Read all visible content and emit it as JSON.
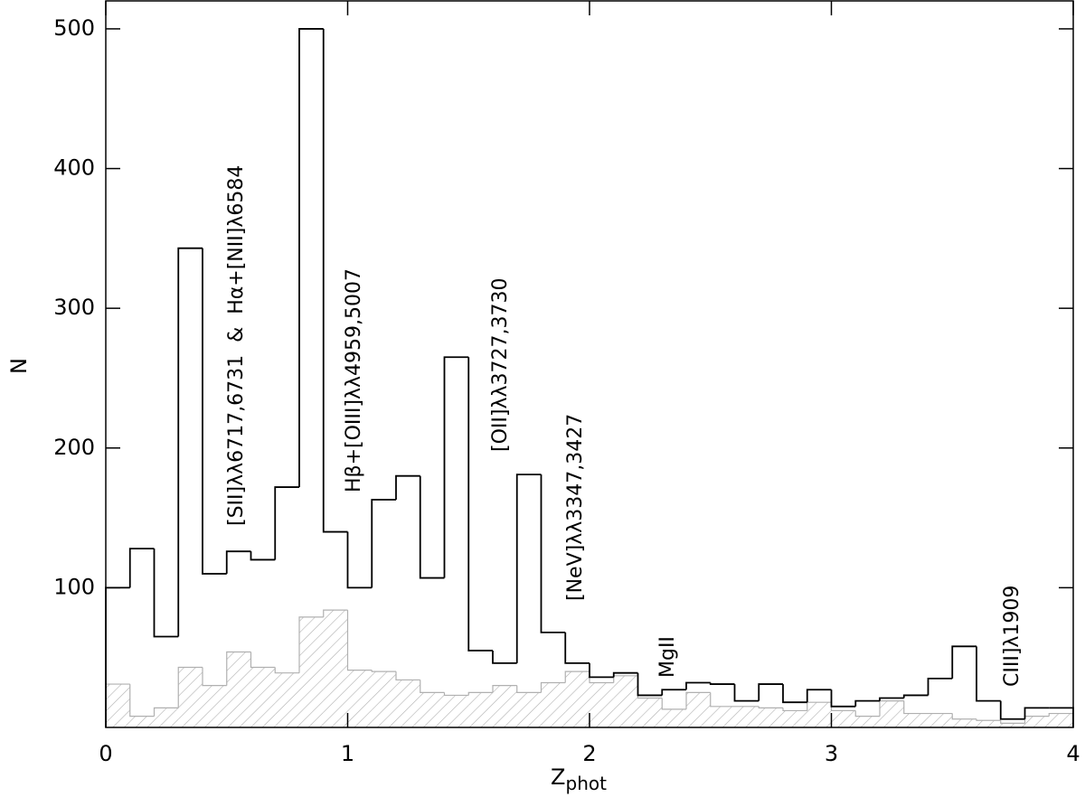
{
  "chart_data": {
    "type": "histogram",
    "x_label": {
      "text": "Z",
      "subscript": "phot"
    },
    "y_label": "N",
    "bins": [
      0,
      0.1,
      0.2,
      0.3,
      0.4,
      0.5,
      0.6,
      0.7,
      0.8,
      0.9,
      1,
      1.1,
      1.2,
      1.3,
      1.4,
      1.5,
      1.6,
      1.7,
      1.8,
      1.9,
      2,
      2.1,
      2.2,
      2.3,
      2.4,
      2.5,
      2.6,
      2.7,
      2.8,
      2.9,
      3,
      3.1,
      3.2,
      3.3,
      3.4,
      3.5,
      3.6,
      3.7,
      3.8,
      3.9,
      4
    ],
    "series": [
      {
        "color": "#000000",
        "style": "outline",
        "values": [
          100,
          128,
          65,
          343,
          110,
          126,
          120,
          172,
          500,
          140,
          100,
          163,
          180,
          107,
          265,
          55,
          46,
          181,
          68,
          46,
          36,
          39,
          23,
          27,
          32,
          31,
          19,
          31,
          18,
          27,
          15,
          19,
          21,
          23,
          35,
          58,
          19,
          6,
          14,
          14
        ]
      },
      {
        "color": "#b0b0b0",
        "style": "hatched",
        "values": [
          31,
          8,
          14,
          43,
          30,
          54,
          43,
          39,
          79,
          84,
          41,
          40,
          34,
          25,
          23,
          25,
          30,
          25,
          32,
          40,
          32,
          37,
          21,
          13,
          25,
          15,
          15,
          14,
          12,
          18,
          12,
          8,
          19,
          10,
          10,
          6,
          5,
          3,
          8,
          10
        ]
      }
    ],
    "annotations": [
      "[SII]λλ6717,6731  &  Hα+[NII]λ6584",
      "Hβ+[OIII]λλ4959,5007",
      "[OII]λλ3727,3730",
      "[NeV]λλ3347,3427",
      "MgII",
      "CIII]λ1909"
    ],
    "xlim": [
      0,
      4
    ],
    "xticks": [
      0,
      1,
      2,
      3,
      4
    ],
    "ylim": [
      0,
      520
    ],
    "yticks": [
      100,
      200,
      300,
      400,
      500
    ]
  }
}
